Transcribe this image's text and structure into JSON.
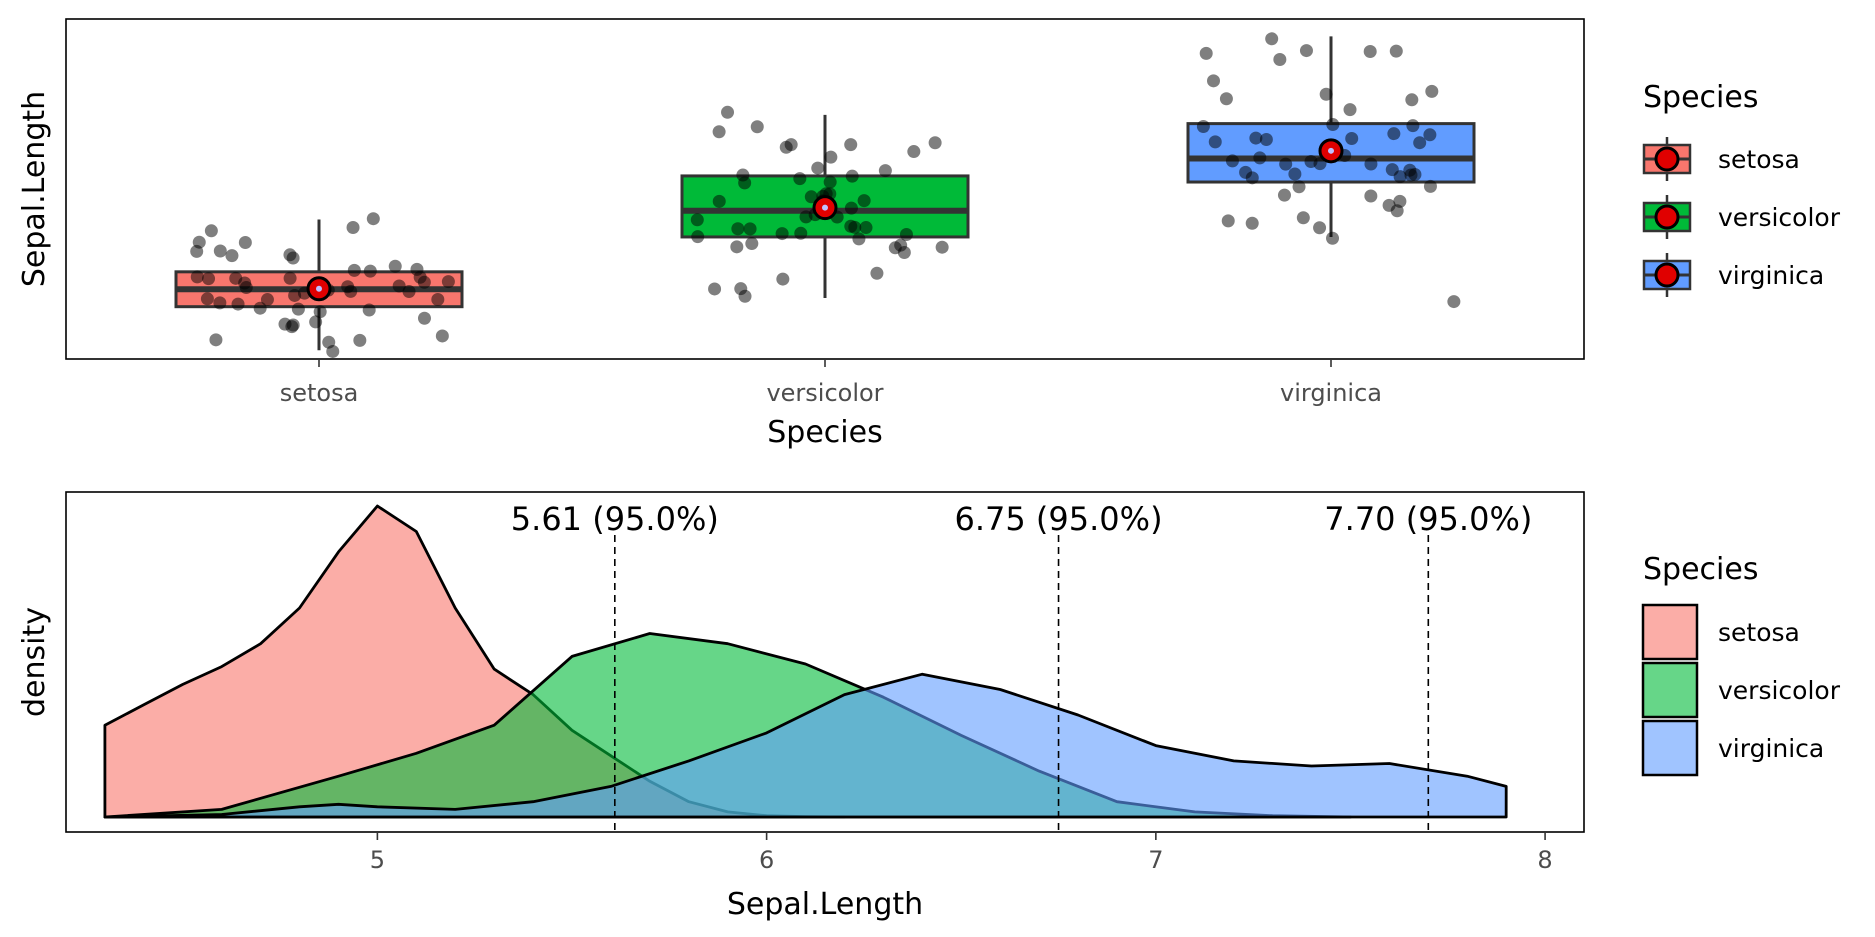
{
  "chart_data": [
    {
      "type": "box",
      "xlabel": "Species",
      "ylabel": "Sepal.Length",
      "categories": [
        "setosa",
        "versicolor",
        "virginica"
      ],
      "ylim": [
        4.2,
        8.1
      ],
      "colors": [
        "#F8766D",
        "#00BA38",
        "#619CFF"
      ],
      "mean_marker_color": "#e00000",
      "boxes": [
        {
          "name": "setosa",
          "q1": 4.8,
          "median": 5.0,
          "q3": 5.2,
          "whisker_low": 4.3,
          "whisker_high": 5.8,
          "mean": 5.006
        },
        {
          "name": "versicolor",
          "q1": 5.6,
          "median": 5.9,
          "q3": 6.3,
          "whisker_low": 4.9,
          "whisker_high": 7.0,
          "mean": 5.936
        },
        {
          "name": "virginica",
          "q1": 6.23,
          "median": 6.5,
          "q3": 6.9,
          "whisker_low": 5.6,
          "whisker_high": 7.9,
          "mean": 6.588
        }
      ],
      "points": [
        [
          5.1,
          4.9,
          4.7,
          4.6,
          5.0,
          5.4,
          4.6,
          5.0,
          4.4,
          4.9,
          5.4,
          4.8,
          4.8,
          4.3,
          5.8,
          5.7,
          5.4,
          5.1,
          5.7,
          5.1,
          5.4,
          5.1,
          4.6,
          5.1,
          4.8,
          5.0,
          5.0,
          5.2,
          5.2,
          4.7,
          4.8,
          5.4,
          5.2,
          5.5,
          4.9,
          5.0,
          5.5,
          4.9,
          4.4,
          5.1,
          5.0,
          4.5,
          4.4,
          5.0,
          5.1,
          4.8,
          5.1,
          4.6,
          5.3,
          5.0
        ],
        [
          7.0,
          6.4,
          6.9,
          5.5,
          6.5,
          5.7,
          6.3,
          4.9,
          6.6,
          5.2,
          5.0,
          5.9,
          6.0,
          6.1,
          5.6,
          6.7,
          5.6,
          5.8,
          6.2,
          5.6,
          5.9,
          6.1,
          6.3,
          6.1,
          6.4,
          6.6,
          6.8,
          6.7,
          6.0,
          5.7,
          5.5,
          5.5,
          5.8,
          6.0,
          5.4,
          6.0,
          6.7,
          6.3,
          5.6,
          5.5,
          5.5,
          6.1,
          5.8,
          5.0,
          5.6,
          5.7,
          5.7,
          6.2,
          5.1,
          5.7
        ],
        [
          6.3,
          5.8,
          7.1,
          6.3,
          6.5,
          7.6,
          4.9,
          7.3,
          6.7,
          7.2,
          6.5,
          6.4,
          6.8,
          5.7,
          5.8,
          6.4,
          6.5,
          7.7,
          7.7,
          6.0,
          6.9,
          5.6,
          7.7,
          6.3,
          6.7,
          7.2,
          6.2,
          6.1,
          6.4,
          7.2,
          7.4,
          7.9,
          6.4,
          6.3,
          6.1,
          7.7,
          6.3,
          6.4,
          6.0,
          6.9,
          6.7,
          6.9,
          5.8,
          6.8,
          6.7,
          6.7,
          6.3,
          6.5,
          6.2,
          5.9
        ]
      ],
      "legend": {
        "title": "Species",
        "entries": [
          "setosa",
          "versicolor",
          "virginica"
        ],
        "position": "right"
      }
    },
    {
      "type": "density",
      "xlabel": "Sepal.Length",
      "ylabel": "density",
      "xlim": [
        4.2,
        8.1
      ],
      "xticks": [
        "5",
        "6",
        "7",
        "8"
      ],
      "fill_colors": [
        "#F8766D",
        "#00BA38",
        "#619CFF"
      ],
      "fill_alpha": 0.6,
      "series": [
        {
          "name": "setosa",
          "x": [
            4.3,
            4.4,
            4.5,
            4.6,
            4.7,
            4.8,
            4.9,
            5.0,
            5.1,
            5.2,
            5.3,
            5.4,
            5.5,
            5.6,
            5.7,
            5.8,
            5.9,
            6.0,
            6.1,
            6.2
          ],
          "y": [
            0.36,
            0.44,
            0.52,
            0.59,
            0.68,
            0.82,
            1.04,
            1.22,
            1.12,
            0.82,
            0.58,
            0.48,
            0.34,
            0.24,
            0.14,
            0.06,
            0.02,
            0.005,
            0.001,
            0
          ]
        },
        {
          "name": "versicolor",
          "x": [
            4.3,
            4.6,
            4.9,
            5.1,
            5.3,
            5.5,
            5.7,
            5.9,
            6.1,
            6.3,
            6.5,
            6.7,
            6.9,
            7.1,
            7.3,
            7.5
          ],
          "y": [
            0,
            0.03,
            0.16,
            0.25,
            0.36,
            0.63,
            0.72,
            0.68,
            0.6,
            0.47,
            0.32,
            0.18,
            0.06,
            0.02,
            0.005,
            0
          ]
        },
        {
          "name": "virginica",
          "x": [
            4.3,
            4.6,
            4.8,
            4.9,
            5.0,
            5.2,
            5.4,
            5.6,
            5.8,
            6.0,
            6.2,
            6.4,
            6.6,
            6.8,
            7.0,
            7.2,
            7.4,
            7.6,
            7.8,
            7.9
          ],
          "y": [
            0,
            0.01,
            0.04,
            0.05,
            0.04,
            0.03,
            0.06,
            0.12,
            0.22,
            0.33,
            0.48,
            0.56,
            0.5,
            0.4,
            0.28,
            0.22,
            0.2,
            0.21,
            0.16,
            0.12
          ]
        }
      ],
      "annotations": [
        {
          "x": 5.61,
          "label": "5.61 (95.0%)"
        },
        {
          "x": 6.75,
          "label": "6.75 (95.0%)"
        },
        {
          "x": 7.7,
          "label": "7.70 (95.0%)"
        }
      ],
      "legend": {
        "title": "Species",
        "entries": [
          "setosa",
          "versicolor",
          "virginica"
        ],
        "position": "right"
      }
    }
  ]
}
